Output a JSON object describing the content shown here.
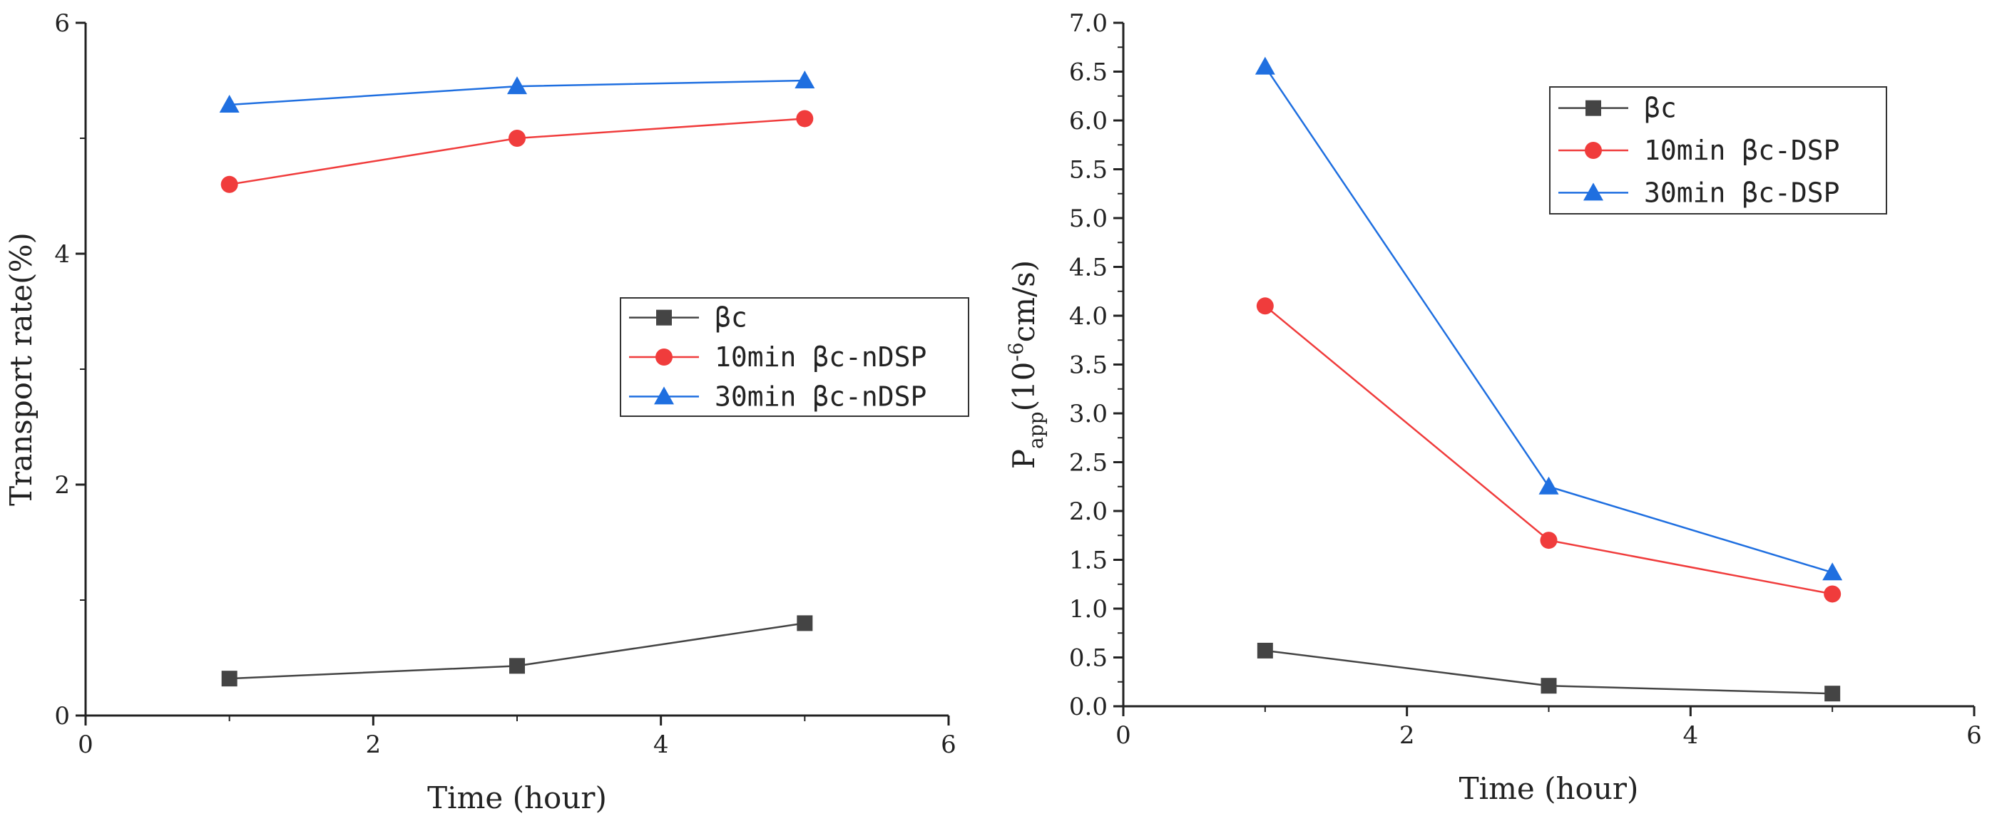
{
  "chart_data": [
    {
      "type": "line",
      "xlabel": "Time (hour)",
      "ylabel": "Transport rate(%)",
      "xlim": [
        0,
        6
      ],
      "ylim": [
        0,
        6
      ],
      "xticks": [
        "0",
        "2",
        "4",
        "6"
      ],
      "yticks": [
        "0",
        "2",
        "4",
        "6"
      ],
      "legend_position": "middle-right",
      "x": [
        1,
        3,
        5
      ],
      "series": [
        {
          "name": "βc",
          "color": "#444444",
          "marker": "square",
          "values": [
            0.32,
            0.43,
            0.8
          ]
        },
        {
          "name": "10min  βc-nDSP",
          "color": "#f03c3c",
          "marker": "circle",
          "values": [
            4.6,
            5.0,
            5.17
          ]
        },
        {
          "name": "30min  βc-nDSP",
          "color": "#1f6fe0",
          "marker": "triangle",
          "values": [
            5.29,
            5.45,
            5.5
          ]
        }
      ]
    },
    {
      "type": "line",
      "xlabel": "Time (hour)",
      "ylabel": "Papp(10⁻⁶cm/s)",
      "ylabel_main": "P",
      "ylabel_sub": "app",
      "ylabel_rest": "(10",
      "ylabel_sup": "-6",
      "ylabel_tail": "cm/s)",
      "xlim": [
        0,
        6
      ],
      "ylim": [
        0,
        7
      ],
      "xticks": [
        "0",
        "2",
        "4",
        "6"
      ],
      "yticks": [
        "0.0",
        "0.5",
        "1.0",
        "1.5",
        "2.0",
        "2.5",
        "3.0",
        "3.5",
        "4.0",
        "4.5",
        "5.0",
        "5.5",
        "6.0",
        "6.5",
        "7.0"
      ],
      "legend_position": "top-right",
      "x": [
        1,
        3,
        5
      ],
      "series": [
        {
          "name": "βc",
          "color": "#444444",
          "marker": "square",
          "values": [
            0.57,
            0.21,
            0.13
          ]
        },
        {
          "name": "10min  βc-DSP",
          "color": "#f03c3c",
          "marker": "circle",
          "values": [
            4.1,
            1.7,
            1.15
          ]
        },
        {
          "name": "30min  βc-DSP",
          "color": "#1f6fe0",
          "marker": "triangle",
          "values": [
            6.55,
            2.25,
            1.37
          ]
        }
      ]
    }
  ]
}
